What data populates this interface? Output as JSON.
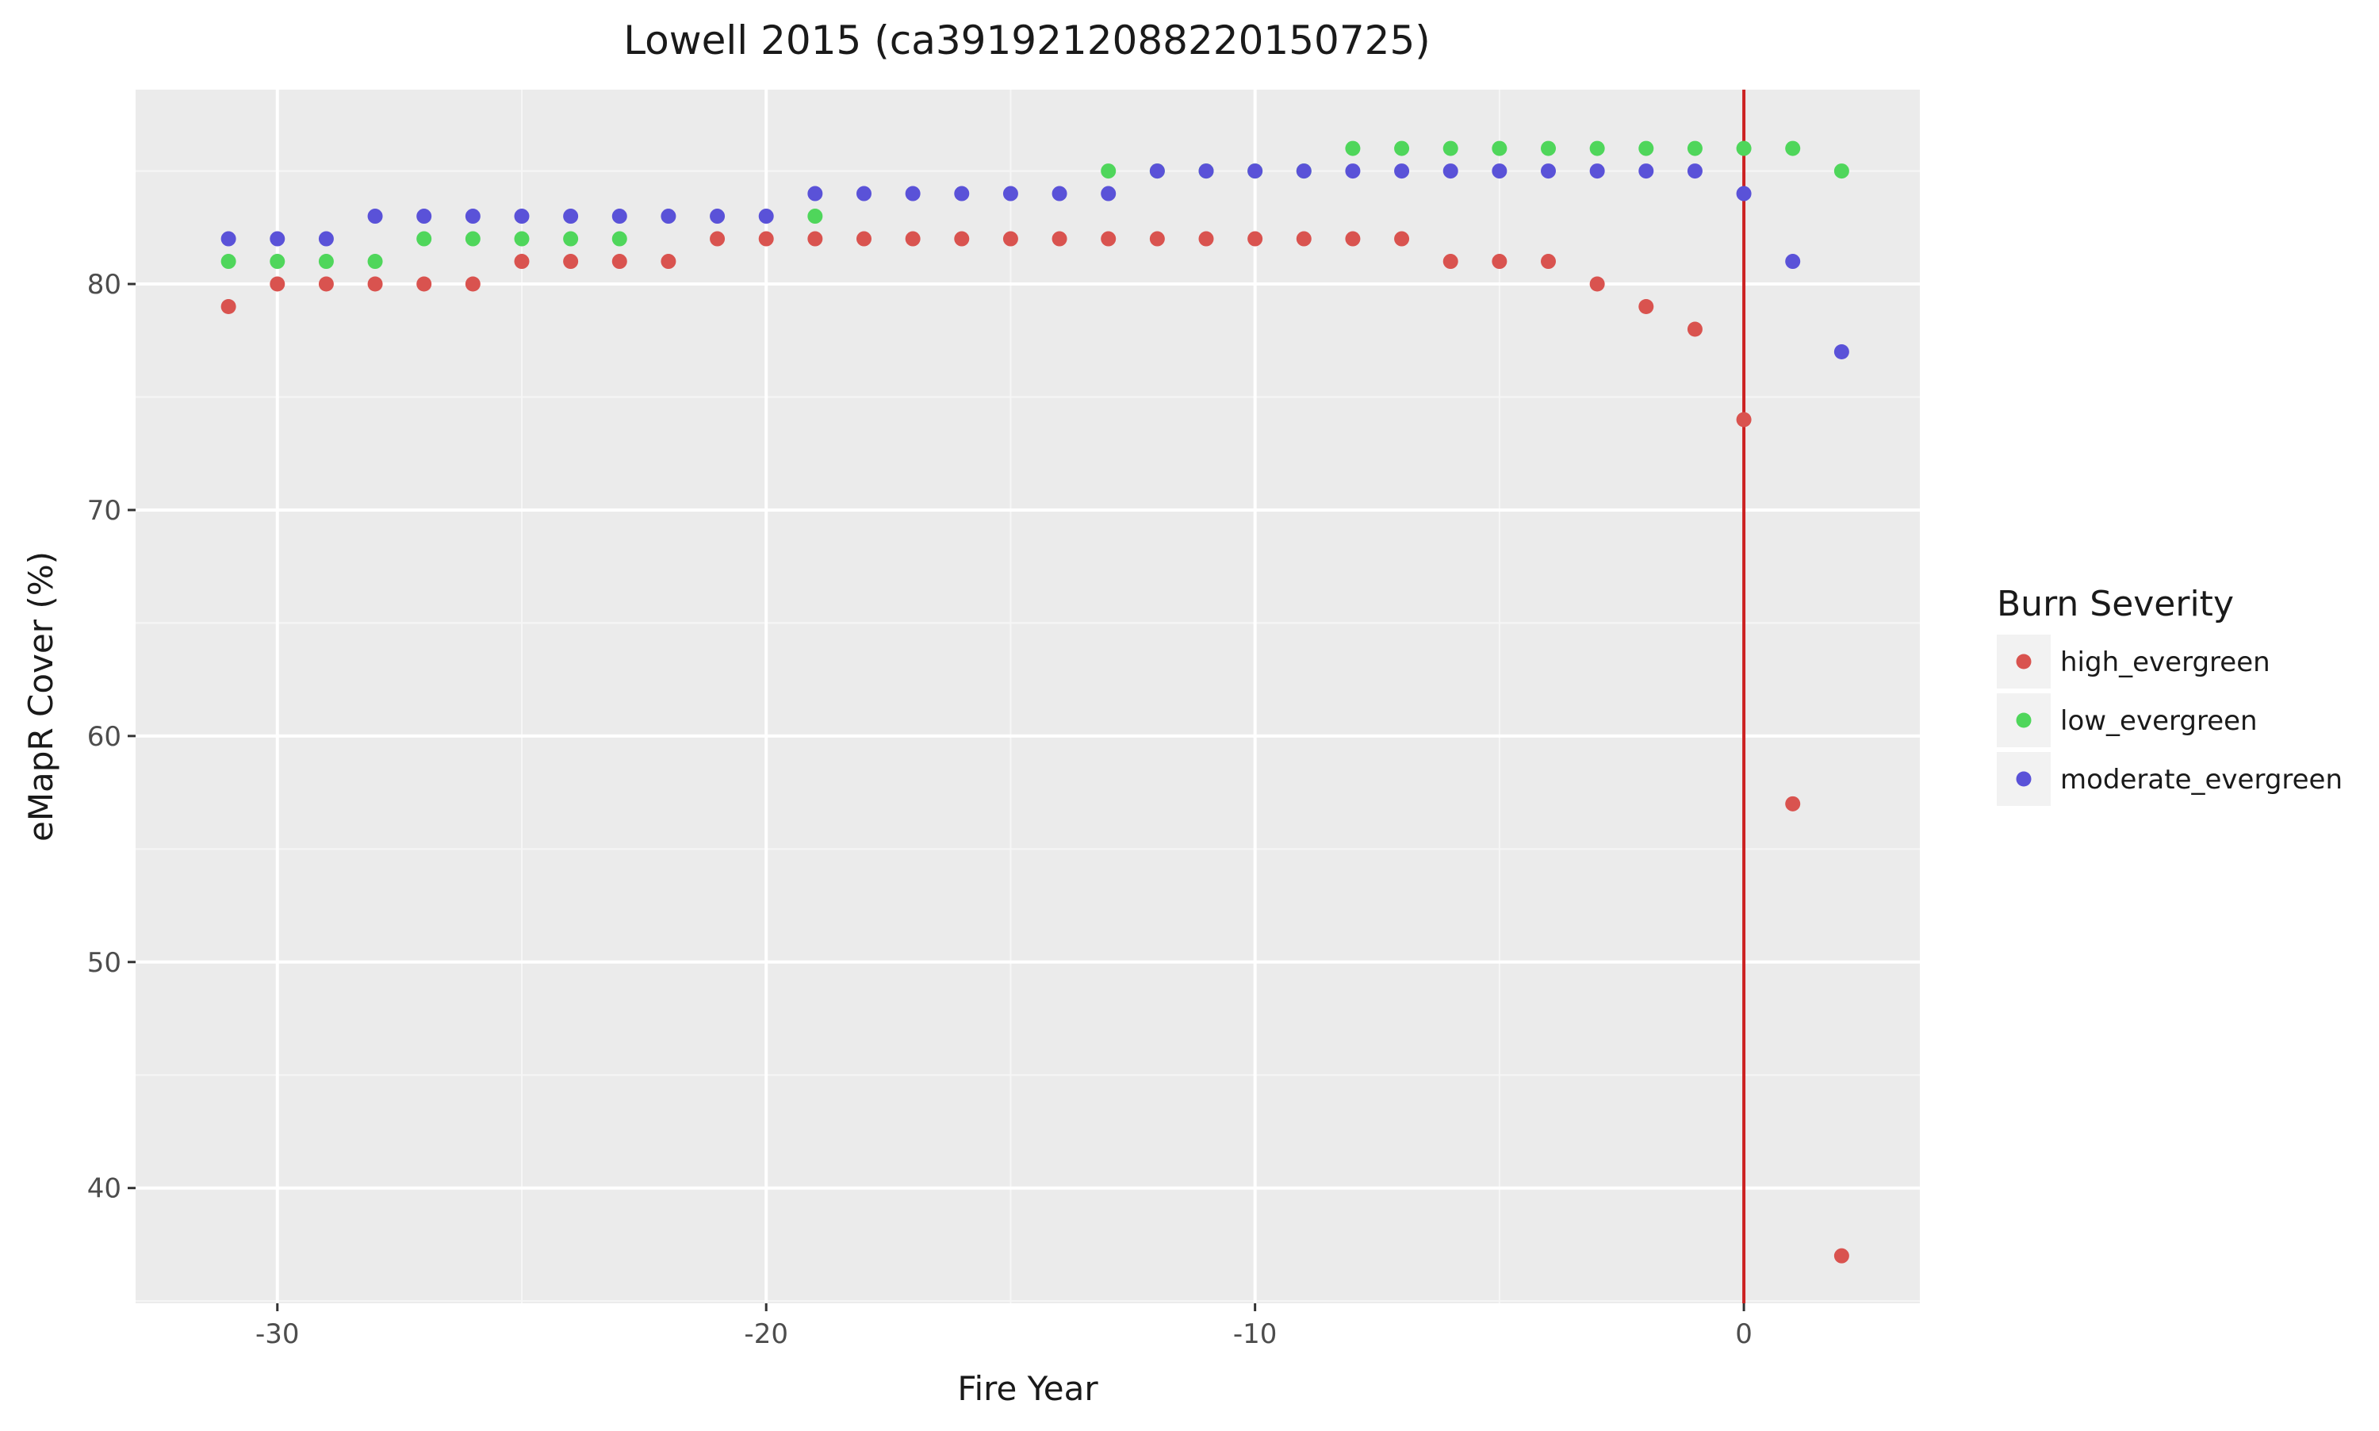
{
  "chart_data": {
    "type": "scatter",
    "title": "Lowell 2015 (ca3919212088220150725)",
    "xlabel": "Fire Year",
    "ylabel": "eMapR Cover (%)",
    "xlim": [
      -32.9,
      3.6
    ],
    "ylim": [
      34.9,
      88.6
    ],
    "xticks": [
      -30,
      -20,
      -10,
      0
    ],
    "yticks": [
      40,
      50,
      60,
      70,
      80
    ],
    "grid": true,
    "legend": {
      "title": "Burn Severity",
      "position": "right"
    },
    "reference_line": {
      "x": 0,
      "color": "#cc2222"
    },
    "series": [
      {
        "name": "high_evergreen",
        "color": "#d9534f",
        "x": [
          -31,
          -30,
          -29,
          -28,
          -27,
          -26,
          -25,
          -24,
          -23,
          -22,
          -21,
          -20,
          -19,
          -18,
          -17,
          -16,
          -15,
          -14,
          -13,
          -12,
          -11,
          -10,
          -9,
          -8,
          -7,
          -6,
          -5,
          -4,
          -3,
          -2,
          -1,
          0,
          1,
          2
        ],
        "y": [
          79,
          80,
          80,
          80,
          80,
          80,
          81,
          81,
          81,
          81,
          82,
          82,
          82,
          82,
          82,
          82,
          82,
          82,
          82,
          82,
          82,
          82,
          82,
          82,
          82,
          81,
          81,
          81,
          80,
          79,
          78,
          74,
          57,
          37
        ]
      },
      {
        "name": "low_evergreen",
        "color": "#4fd65b",
        "x": [
          -31,
          -30,
          -29,
          -28,
          -27,
          -26,
          -25,
          -24,
          -23,
          -19,
          -13,
          -12,
          -11,
          -10,
          -9,
          -8,
          -7,
          -6,
          -5,
          -4,
          -3,
          -2,
          -1,
          0,
          1,
          2
        ],
        "y": [
          81,
          81,
          81,
          81,
          82,
          82,
          82,
          82,
          82,
          83,
          85,
          85,
          85,
          85,
          85,
          86,
          86,
          86,
          86,
          86,
          86,
          86,
          86,
          86,
          86,
          85
        ]
      },
      {
        "name": "moderate_evergreen",
        "color": "#5a52d8",
        "x": [
          -31,
          -30,
          -29,
          -28,
          -27,
          -26,
          -25,
          -24,
          -23,
          -22,
          -21,
          -20,
          -19,
          -18,
          -17,
          -16,
          -15,
          -14,
          -13,
          -12,
          -11,
          -10,
          -9,
          -8,
          -7,
          -6,
          -5,
          -4,
          -3,
          -2,
          -1,
          0,
          1,
          2
        ],
        "y": [
          82,
          82,
          82,
          83,
          83,
          83,
          83,
          83,
          83,
          83,
          83,
          83,
          84,
          84,
          84,
          84,
          84,
          84,
          84,
          85,
          85,
          85,
          85,
          85,
          85,
          85,
          85,
          85,
          85,
          85,
          85,
          84,
          81,
          77
        ]
      }
    ]
  }
}
